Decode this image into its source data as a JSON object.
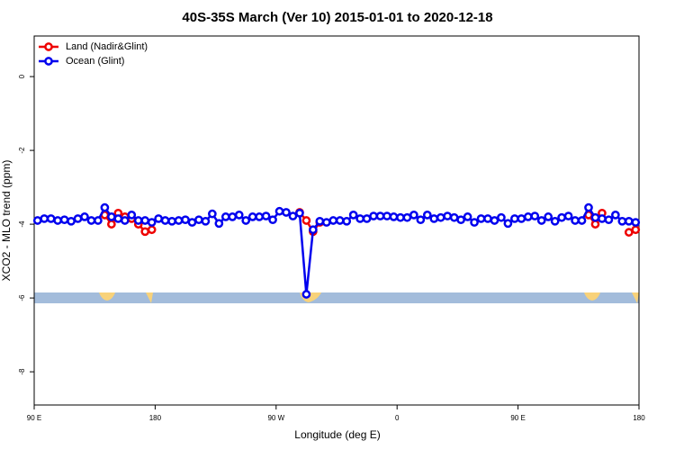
{
  "chart_data": {
    "type": "line",
    "title": "40S-35S March (Ver 10)   2015-01-01 to 2020-12-18",
    "x_label": "Longitude (deg E)",
    "y_label": "XCO2 - MLO trend (ppm)",
    "xlim": [
      90,
      540
    ],
    "ylim": [
      -8.9,
      1.1
    ],
    "xticks": [
      {
        "value": 90,
        "label": "90 E"
      },
      180,
      {
        "value": 270,
        "label": "90 W"
      },
      {
        "value": 360,
        "label": "0"
      },
      {
        "value": 450,
        "label": "90 E"
      },
      {
        "value": 540,
        "label": "180"
      }
    ],
    "yticks": [
      0,
      -2,
      -4,
      -6,
      -8
    ],
    "legend": "top-left",
    "x": [
      92.5,
      97.5,
      102.5,
      107.5,
      112.5,
      117.5,
      122.5,
      127.5,
      132.5,
      137.5,
      142.5,
      147.5,
      152.5,
      157.5,
      162.5,
      167.5,
      172.5,
      177.5,
      182.5,
      187.5,
      192.5,
      197.5,
      202.5,
      207.5,
      212.5,
      217.5,
      222.5,
      227.5,
      232.5,
      237.5,
      242.5,
      247.5,
      252.5,
      257.5,
      262.5,
      267.5,
      272.5,
      277.5,
      282.5,
      287.5,
      292.5,
      297.5,
      302.5,
      307.5,
      312.5,
      317.5,
      322.5,
      327.5,
      332.5,
      337.5,
      342.5,
      347.5,
      352.5,
      357.5,
      362.5,
      367.5,
      372.5,
      377.5,
      382.5,
      387.5,
      392.5,
      397.5,
      402.5,
      407.5,
      412.5,
      417.5,
      422.5,
      427.5,
      432.5,
      437.5,
      442.5,
      447.5,
      452.5,
      457.5,
      462.5,
      467.5,
      472.5,
      477.5,
      482.5,
      487.5,
      492.5,
      497.5,
      502.5,
      507.5,
      512.5,
      517.5,
      522.5,
      527.5,
      532.5,
      537.5
    ],
    "series": [
      {
        "name": "Land (Nadir&Glint)",
        "color": "#ee0000",
        "values": [
          null,
          null,
          null,
          null,
          null,
          null,
          null,
          null,
          null,
          null,
          -3.75,
          -4.0,
          -3.7,
          -3.8,
          -3.85,
          -4.0,
          -4.2,
          -4.15,
          null,
          null,
          null,
          null,
          null,
          null,
          null,
          null,
          null,
          null,
          null,
          null,
          null,
          null,
          null,
          null,
          null,
          null,
          null,
          null,
          null,
          -3.68,
          -3.9,
          -4.2,
          -3.95,
          null,
          null,
          null,
          null,
          null,
          null,
          null,
          null,
          null,
          null,
          null,
          null,
          null,
          null,
          null,
          null,
          null,
          null,
          null,
          null,
          null,
          null,
          null,
          null,
          null,
          null,
          null,
          null,
          null,
          null,
          null,
          null,
          null,
          null,
          null,
          null,
          null,
          null,
          null,
          -3.75,
          -4.0,
          -3.7,
          null,
          null,
          null,
          -4.22,
          -4.15
        ]
      },
      {
        "name": "Ocean (Glint)",
        "color": "#0000ee",
        "values": [
          -3.9,
          -3.85,
          -3.85,
          -3.9,
          -3.88,
          -3.92,
          -3.85,
          -3.8,
          -3.9,
          -3.9,
          -3.55,
          -3.8,
          -3.85,
          -3.9,
          -3.75,
          -3.9,
          -3.9,
          -3.95,
          -3.85,
          -3.9,
          -3.92,
          -3.9,
          -3.88,
          -3.95,
          -3.88,
          -3.92,
          -3.72,
          -3.98,
          -3.8,
          -3.8,
          -3.75,
          -3.9,
          -3.8,
          -3.8,
          -3.78,
          -3.88,
          -3.65,
          -3.68,
          -3.78,
          -3.7,
          -5.9,
          -4.15,
          -3.92,
          -3.95,
          -3.9,
          -3.9,
          -3.92,
          -3.75,
          -3.85,
          -3.85,
          -3.78,
          -3.78,
          -3.78,
          -3.8,
          -3.82,
          -3.82,
          -3.75,
          -3.88,
          -3.75,
          -3.85,
          -3.82,
          -3.78,
          -3.82,
          -3.88,
          -3.8,
          -3.95,
          -3.85,
          -3.85,
          -3.9,
          -3.82,
          -3.98,
          -3.85,
          -3.85,
          -3.8,
          -3.78,
          -3.9,
          -3.8,
          -3.92,
          -3.82,
          -3.78,
          -3.9,
          -3.9,
          -3.55,
          -3.82,
          -3.85,
          -3.88,
          -3.75,
          -3.92,
          -3.92,
          -3.95
        ]
      }
    ]
  }
}
